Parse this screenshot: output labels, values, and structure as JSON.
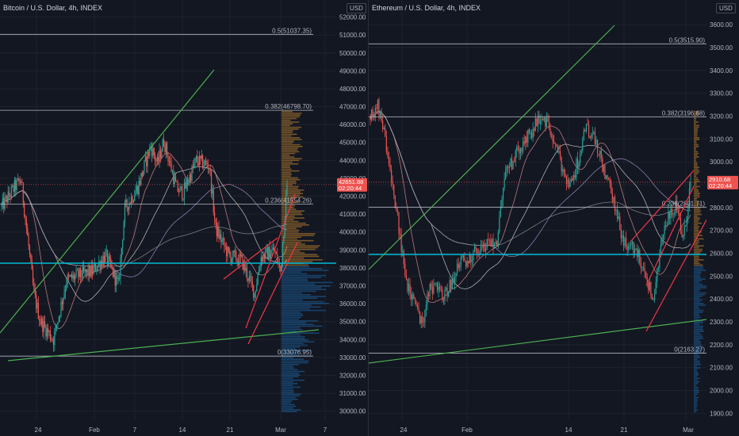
{
  "panels": [
    {
      "id": "btc",
      "title": "Bitcoin / U.S. Dollar, 4h, INDEX",
      "currency": "USD",
      "y_ticks": [
        "52000.00",
        "51000.00",
        "50000.00",
        "49000.00",
        "48000.00",
        "47000.00",
        "46000.00",
        "45000.00",
        "44000.00",
        "43000.00",
        "42000.00",
        "41000.00",
        "40000.00",
        "39000.00",
        "38000.00",
        "37000.00",
        "36000.00",
        "35000.00",
        "34000.00",
        "33000.00",
        "32000.00",
        "31000.00",
        "30000.00"
      ],
      "x_ticks": [
        "24",
        "Feb",
        "7",
        "14",
        "21",
        "Mar",
        "7"
      ],
      "fib_labels": [
        "0.5(51037.35)",
        "0.382(46798.70)",
        "0.236(41554.26)",
        "0(33076.95)"
      ],
      "price_tag": "42651.88",
      "countdown": "02:20:44",
      "colors": {
        "up": "#26a69a",
        "down": "#ef5350",
        "fib": "#b2b5be",
        "support": "#00bcd4",
        "trend": "#4caf50",
        "channel": "#f23645"
      }
    },
    {
      "id": "eth",
      "title": "Ethereum / U.S. Dollar, 4h, INDEX",
      "currency": "USD",
      "y_ticks": [
        "3600.00",
        "3500.00",
        "3400.00",
        "3300.00",
        "3200.00",
        "3100.00",
        "3000.00",
        "2900.00",
        "2800.00",
        "2700.00",
        "2600.00",
        "2500.00",
        "2400.00",
        "2300.00",
        "2200.00",
        "2100.00",
        "2000.00",
        "1900.00"
      ],
      "x_ticks": [
        "24",
        "Feb",
        "14",
        "21",
        "Mar"
      ],
      "fib_labels": [
        "0.5(3515.90)",
        "0.382(3196.68)",
        "0.236(2801.71)",
        "0(2163.27)"
      ],
      "price_tag": "2910.68",
      "countdown": "02:20:44",
      "colors": {
        "up": "#26a69a",
        "down": "#ef5350",
        "fib": "#b2b5be",
        "support": "#00bcd4",
        "trend": "#4caf50",
        "channel": "#f23645"
      }
    }
  ],
  "chart_data": [
    {
      "type": "candlestick",
      "title": "Bitcoin / U.S. Dollar, 4h, INDEX",
      "ylabel": "USD",
      "ylim": [
        29500,
        52600
      ],
      "grid": true,
      "fib_levels": [
        {
          "ratio": "0.5",
          "price": 51037.35
        },
        {
          "ratio": "0.382",
          "price": 46798.7
        },
        {
          "ratio": "0.236",
          "price": 41554.26
        },
        {
          "ratio": "0",
          "price": 33076.95
        }
      ],
      "support_level": 38350,
      "last_price": 42651.88,
      "price_path": [
        [
          "Jan 16",
          41400
        ],
        [
          "Jan 18",
          42500
        ],
        [
          "Jan 19",
          42900
        ],
        [
          "Jan 21",
          36500
        ],
        [
          "Jan 22",
          35000
        ],
        [
          "Jan 24",
          34000
        ],
        [
          "Jan 26",
          37300
        ],
        [
          "Jan 28",
          37600
        ],
        [
          "Jan 30",
          37800
        ],
        [
          "Feb 1",
          38700
        ],
        [
          "Feb 3",
          37000
        ],
        [
          "Feb 4",
          41300
        ],
        [
          "Feb 6",
          42500
        ],
        [
          "Feb 8",
          44800
        ],
        [
          "Feb 9",
          43800
        ],
        [
          "Feb 10",
          45100
        ],
        [
          "Feb 12",
          42400
        ],
        [
          "Feb 13",
          42200
        ],
        [
          "Feb 15",
          44000
        ],
        [
          "Feb 17",
          43700
        ],
        [
          "Feb 18",
          40200
        ],
        [
          "Feb 20",
          38700
        ],
        [
          "Feb 22",
          38400
        ],
        [
          "Feb 24",
          36600
        ],
        [
          "Feb 25",
          38600
        ],
        [
          "Feb 27",
          39000
        ],
        [
          "Feb 28",
          37800
        ],
        [
          "Mar 1",
          42651.88
        ]
      ]
    },
    {
      "type": "candlestick",
      "title": "Ethereum / U.S. Dollar, 4h, INDEX",
      "ylabel": "USD",
      "ylim": [
        1870,
        3680
      ],
      "grid": true,
      "fib_levels": [
        {
          "ratio": "0.5",
          "price": 3515.9
        },
        {
          "ratio": "0.382",
          "price": 3196.68
        },
        {
          "ratio": "0.236",
          "price": 2801.71
        },
        {
          "ratio": "0",
          "price": 2163.27
        }
      ],
      "support_level": 2600,
      "last_price": 2910.68,
      "price_path": [
        [
          "Jan 17",
          3200
        ],
        [
          "Jan 18",
          3250
        ],
        [
          "Jan 19",
          3100
        ],
        [
          "Jan 20",
          2900
        ],
        [
          "Jan 22",
          2450
        ],
        [
          "Jan 24",
          2300
        ],
        [
          "Jan 25",
          2450
        ],
        [
          "Jan 27",
          2420
        ],
        [
          "Jan 29",
          2550
        ],
        [
          "Jan 31",
          2600
        ],
        [
          "Feb 2",
          2650
        ],
        [
          "Feb 3",
          2650
        ],
        [
          "Feb 4",
          2950
        ],
        [
          "Feb 5",
          3000
        ],
        [
          "Feb 7",
          3100
        ],
        [
          "Feb 9",
          3200
        ],
        [
          "Feb 10",
          3150
        ],
        [
          "Feb 12",
          2950
        ],
        [
          "Feb 13",
          2900
        ],
        [
          "Feb 15",
          3150
        ],
        [
          "Feb 16",
          3100
        ],
        [
          "Feb 18",
          2900
        ],
        [
          "Feb 20",
          2650
        ],
        [
          "Feb 22",
          2600
        ],
        [
          "Feb 24",
          2400
        ],
        [
          "Feb 25",
          2650
        ],
        [
          "Feb 26",
          2750
        ],
        [
          "Feb 27",
          2800
        ],
        [
          "Feb 28",
          2650
        ],
        [
          "Mar 1",
          2910.68
        ]
      ]
    }
  ]
}
